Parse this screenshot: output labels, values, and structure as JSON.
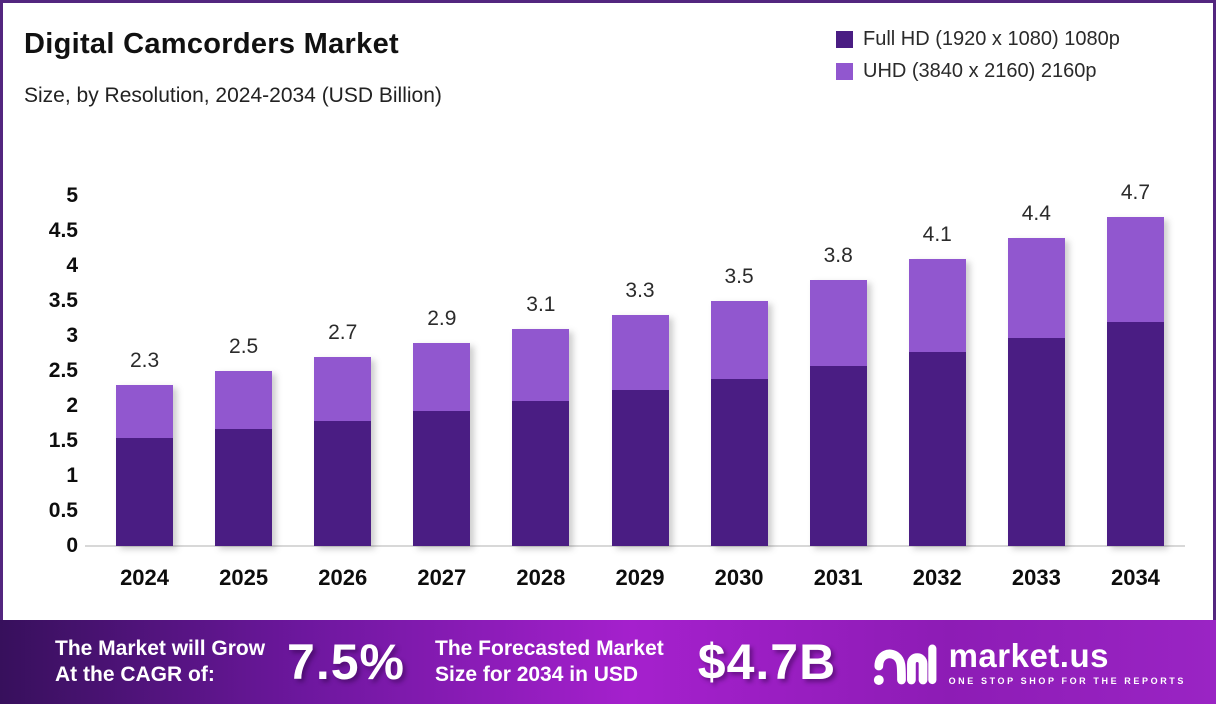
{
  "header": {
    "title": "Digital Camcorders Market",
    "subtitle": "Size, by Resolution, 2024-2034 (USD Billion)"
  },
  "legend": [
    {
      "label": "Full HD (1920 x 1080) 1080p",
      "color": "#4a1d83"
    },
    {
      "label": "UHD (3840 x 2160) 2160p",
      "color": "#9157cf"
    }
  ],
  "chart_data": {
    "type": "bar",
    "stacked": true,
    "title": "Digital Camcorders Market Size, by Resolution, 2024-2034 (USD Billion)",
    "xlabel": "",
    "ylabel": "USD Billion",
    "ylim": [
      0,
      5
    ],
    "ytick_labels": [
      "5",
      "4.5",
      "4",
      "3.5",
      "3",
      "2.5",
      "2",
      "1.5",
      "1",
      "0.5",
      "0"
    ],
    "grid": false,
    "legend_position": "top-right",
    "categories": [
      "2024",
      "2025",
      "2026",
      "2027",
      "2028",
      "2029",
      "2030",
      "2031",
      "2032",
      "2033",
      "2034"
    ],
    "series": [
      {
        "name": "Full HD (1920 x 1080) 1080p",
        "color": "#4a1d83",
        "values": [
          1.55,
          1.67,
          1.79,
          1.93,
          2.07,
          2.23,
          2.39,
          2.57,
          2.77,
          2.97,
          3.2
        ]
      },
      {
        "name": "UHD (3840 x 2160) 2160p",
        "color": "#9157cf",
        "values": [
          0.75,
          0.83,
          0.91,
          0.97,
          1.03,
          1.07,
          1.11,
          1.23,
          1.33,
          1.43,
          1.5
        ]
      }
    ],
    "total_labels": [
      "2.3",
      "2.5",
      "2.7",
      "2.9",
      "3.1",
      "3.3",
      "3.5",
      "3.8",
      "4.1",
      "4.4",
      "4.7"
    ]
  },
  "banner": {
    "cagr_label_line1": "The Market will Grow",
    "cagr_label_line2": "At the CAGR of:",
    "cagr_value": "7.5%",
    "forecast_label_line1": "The Forecasted Market",
    "forecast_label_line2": "Size for 2034 in USD",
    "forecast_value": "$4.7B",
    "logo_name": "market.us",
    "logo_tagline": "ONE STOP SHOP FOR THE REPORTS"
  },
  "colors": {
    "frame_border": "#53267f",
    "axis_line": "#d8d8d8",
    "banner_gradient_left": "#37105c",
    "banner_gradient_mid": "#a520cd",
    "banner_gradient_right": "#9a24c4"
  }
}
